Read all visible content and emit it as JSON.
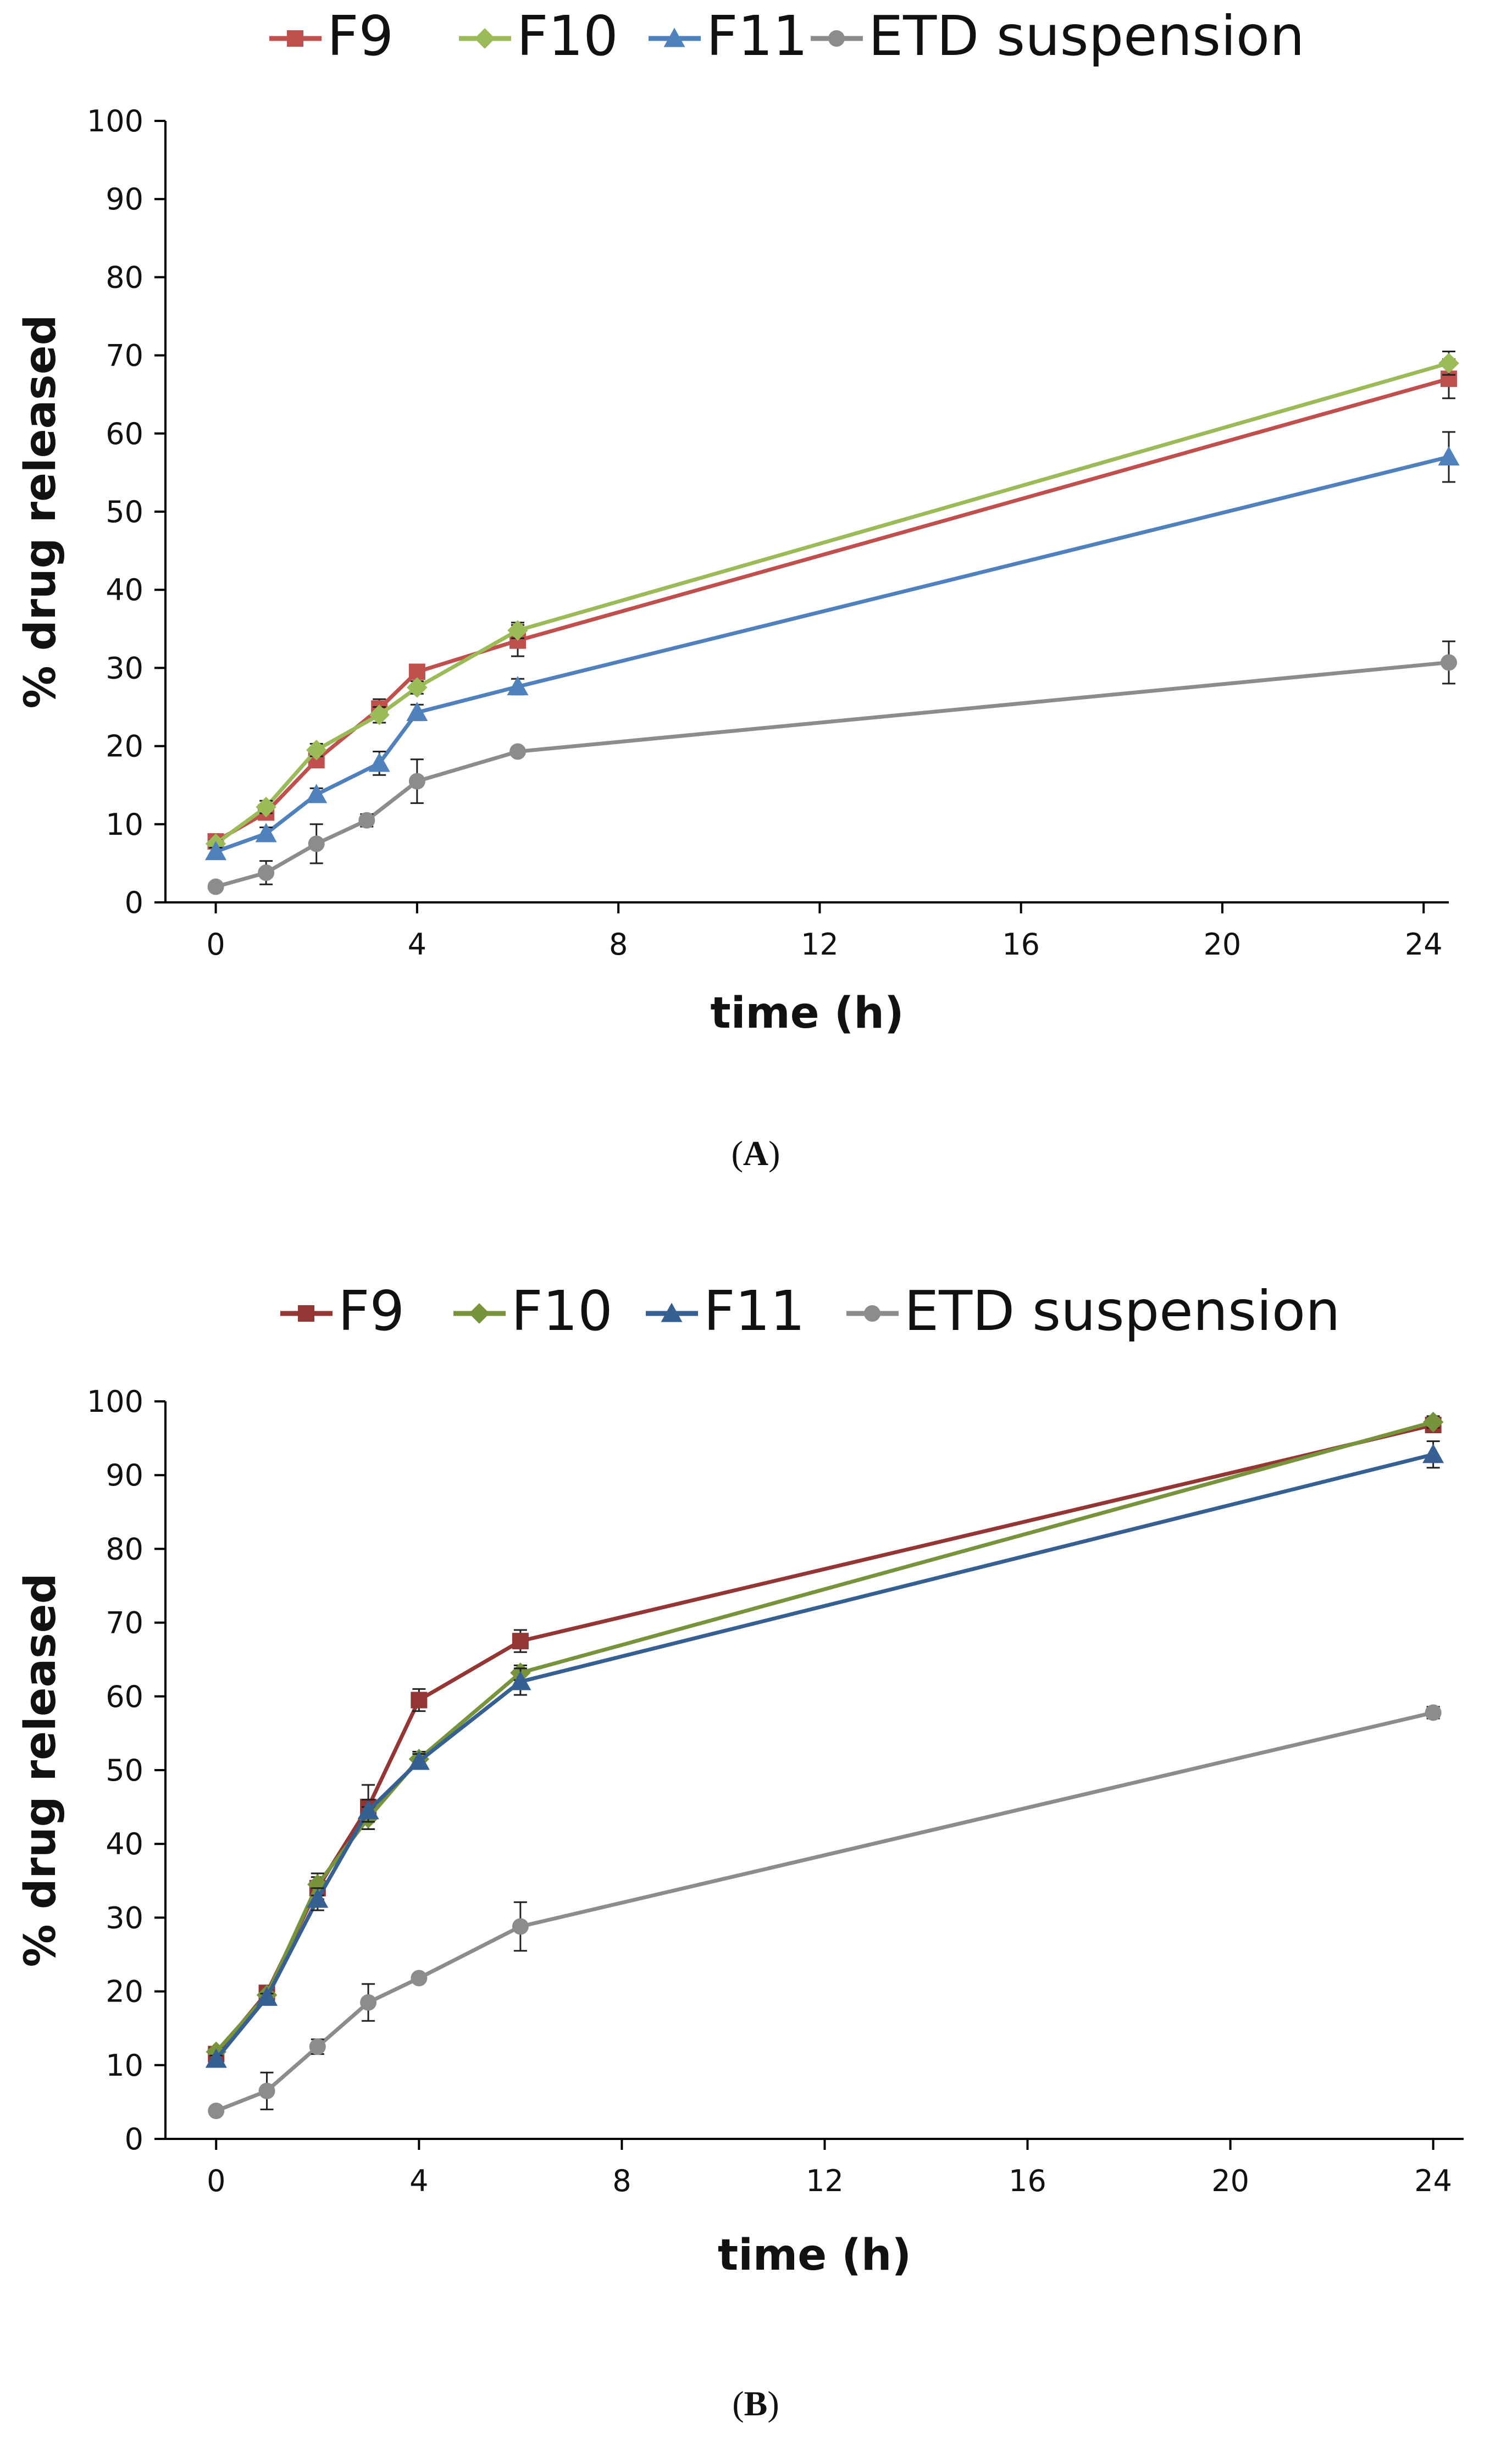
{
  "chart_data": [
    {
      "panel": "A",
      "type": "line",
      "legend": [
        "F9",
        "F10",
        "F11",
        "ETD suspension"
      ],
      "xlabel": "time (h)",
      "ylabel": "% drug released",
      "xlim": [
        -1,
        24.5
      ],
      "ylim": [
        0,
        100
      ],
      "xticks": [
        0,
        4,
        8,
        12,
        16,
        20,
        24
      ],
      "yticks": [
        0,
        10,
        20,
        30,
        40,
        50,
        60,
        70,
        80,
        90,
        100
      ],
      "grid": false,
      "series": [
        {
          "name": "F9",
          "color": "#C0504D",
          "marker": "square",
          "x": [
            0,
            1,
            2,
            3.25,
            4,
            6,
            24.5
          ],
          "y": [
            7.8,
            11.5,
            18.2,
            24.8,
            29.5,
            33.5,
            67
          ],
          "err": [
            0.5,
            0.8,
            0.8,
            1.2,
            0.8,
            2.0,
            2.5
          ]
        },
        {
          "name": "F10",
          "color": "#9BBB59",
          "marker": "diamond",
          "x": [
            0,
            1,
            2,
            3.25,
            4,
            6,
            24.5
          ],
          "y": [
            7.5,
            12.2,
            19.5,
            24,
            27.5,
            34.8,
            69
          ],
          "err": [
            0.5,
            0.8,
            0.8,
            1.0,
            0.8,
            1.0,
            1.5
          ]
        },
        {
          "name": "F11",
          "color": "#4F81BD",
          "marker": "triangle",
          "x": [
            0,
            1,
            2,
            3.25,
            4,
            6,
            24.5
          ],
          "y": [
            6.5,
            8.8,
            13.8,
            17.8,
            24.3,
            27.6,
            57
          ],
          "err": [
            0.5,
            0.8,
            0.8,
            1.5,
            1.0,
            1.0,
            3.2
          ]
        },
        {
          "name": "ETD suspension",
          "color": "#8C8C8C",
          "marker": "circle",
          "x": [
            0,
            1,
            2,
            3,
            4,
            6,
            24.5
          ],
          "y": [
            2,
            3.8,
            7.5,
            10.5,
            15.5,
            19.3,
            30.7
          ],
          "err": [
            0.5,
            1.5,
            2.5,
            0.8,
            2.8,
            0.5,
            2.7
          ]
        }
      ]
    },
    {
      "panel": "B",
      "type": "line",
      "legend": [
        "F9",
        "F10",
        "F11",
        "ETD suspension"
      ],
      "xlabel": "time (h)",
      "ylabel": "% drug released",
      "xlim": [
        -1,
        24.6
      ],
      "ylim": [
        0,
        100
      ],
      "xticks": [
        0,
        4,
        8,
        12,
        16,
        20,
        24
      ],
      "yticks": [
        0,
        10,
        20,
        30,
        40,
        50,
        60,
        70,
        80,
        90,
        100
      ],
      "grid": false,
      "series": [
        {
          "name": "F9",
          "color": "#943634",
          "marker": "square",
          "x": [
            0,
            1,
            2,
            3,
            4,
            6,
            24
          ],
          "y": [
            11.5,
            19.8,
            34,
            45,
            59.5,
            67.5,
            96.8
          ],
          "err": [
            0.5,
            0.5,
            1.5,
            3.0,
            1.5,
            1.5,
            1.0
          ]
        },
        {
          "name": "F10",
          "color": "#77933C",
          "marker": "diamond",
          "x": [
            0,
            1,
            2,
            3,
            4,
            6,
            24
          ],
          "y": [
            11.8,
            19.5,
            34.5,
            43.5,
            51.5,
            63.2,
            97.2
          ],
          "err": [
            0.5,
            0.5,
            1.5,
            1.5,
            1.0,
            1.0,
            0.8
          ]
        },
        {
          "name": "F11",
          "color": "#376092",
          "marker": "triangle",
          "x": [
            0,
            1,
            2,
            3,
            4,
            6,
            24
          ],
          "y": [
            10.8,
            19.2,
            32.5,
            44.5,
            51.2,
            62,
            92.8
          ],
          "err": [
            0.5,
            0.5,
            1.5,
            1.5,
            1.0,
            1.8,
            1.8
          ]
        },
        {
          "name": "ETD suspension",
          "color": "#8C8C8C",
          "marker": "circle",
          "x": [
            0,
            1,
            2,
            3,
            4,
            6,
            24
          ],
          "y": [
            3.8,
            6.5,
            12.5,
            18.5,
            21.8,
            28.8,
            57.8
          ],
          "err": [
            0.3,
            2.5,
            1.0,
            2.5,
            0.5,
            3.3,
            0.8
          ]
        }
      ]
    }
  ],
  "panel_labels": {
    "a": {
      "open": "(",
      "letter": "A",
      "close": ")"
    },
    "b": {
      "open": "(",
      "letter": "B",
      "close": ")"
    }
  }
}
